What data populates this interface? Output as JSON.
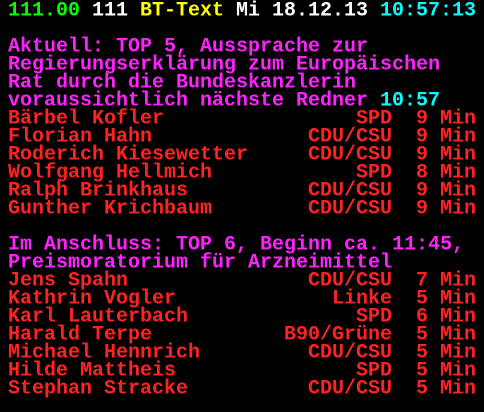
{
  "header": {
    "page": "111.00",
    "subpage": "111",
    "service": "BT-Text",
    "weekday": "Mi",
    "date": "18.12.13",
    "time": "10:57:13"
  },
  "sections": [
    {
      "lines": [
        "Aktuell: TOP 5, Aussprache zur",
        "Regierungserklärung zum Europäischen",
        "Rat durch die Bundeskanzlerin",
        "voraussichtlich nächste Redner"
      ],
      "time": "10:57",
      "speakers": [
        {
          "name": "Bärbel Kofler",
          "party": "SPD",
          "minutes": "9 Min"
        },
        {
          "name": "Florian Hahn",
          "party": "CDU/CSU",
          "minutes": "9 Min"
        },
        {
          "name": "Roderich Kiesewetter",
          "party": "CDU/CSU",
          "minutes": "9 Min"
        },
        {
          "name": "Wolfgang Hellmich",
          "party": "SPD",
          "minutes": "8 Min"
        },
        {
          "name": "Ralph Brinkhaus",
          "party": "CDU/CSU",
          "minutes": "9 Min"
        },
        {
          "name": "Gunther Krichbaum",
          "party": "CDU/CSU",
          "minutes": "9 Min"
        }
      ]
    },
    {
      "lines": [
        "Im Anschluss: TOP 6, Beginn ca. 11:45,",
        "Preismoratorium für Arzneimittel"
      ],
      "speakers": [
        {
          "name": "Jens Spahn",
          "party": "CDU/CSU",
          "minutes": "7 Min"
        },
        {
          "name": "Kathrin Vogler",
          "party": "Linke",
          "minutes": "5 Min"
        },
        {
          "name": "Karl Lauterbach",
          "party": "SPD",
          "minutes": "6 Min"
        },
        {
          "name": "Harald Terpe",
          "party": "B90/Grüne",
          "minutes": "5 Min"
        },
        {
          "name": "Michael Hennrich",
          "party": "CDU/CSU",
          "minutes": "5 Min"
        },
        {
          "name": "Hilde Mattheis",
          "party": "SPD",
          "minutes": "5 Min"
        },
        {
          "name": "Stephan Stracke",
          "party": "CDU/CSU",
          "minutes": "5 Min"
        }
      ]
    }
  ]
}
